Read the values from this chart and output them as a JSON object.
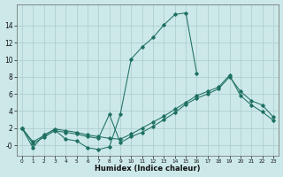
{
  "xlabel": "Humidex (Indice chaleur)",
  "background_color": "#cce8e8",
  "grid_color": "#aacccc",
  "line_color": "#1e7060",
  "line1_x": [
    0,
    1,
    2,
    3,
    4,
    5,
    6,
    7,
    8,
    9,
    10,
    11,
    12,
    13,
    14,
    15,
    16
  ],
  "line1_y": [
    2.0,
    -0.3,
    1.2,
    1.8,
    0.7,
    0.5,
    -0.3,
    -0.5,
    -0.2,
    3.6,
    10.1,
    11.5,
    12.6,
    14.1,
    15.3,
    15.5,
    8.4
  ],
  "line2_x": [
    0,
    1,
    2,
    3,
    4,
    5,
    6,
    7,
    8,
    9,
    10,
    11,
    12,
    13,
    14,
    15,
    16,
    17,
    18,
    19,
    20,
    21,
    22,
    23
  ],
  "line2_y": [
    2.0,
    0.2,
    0.9,
    1.7,
    1.5,
    1.3,
    1.0,
    0.8,
    3.6,
    0.3,
    1.0,
    1.5,
    2.2,
    3.0,
    3.8,
    4.8,
    5.5,
    6.0,
    6.6,
    8.0,
    6.3,
    5.2,
    4.7,
    3.3
  ],
  "line3_x": [
    0,
    1,
    2,
    3,
    4,
    5,
    6,
    7,
    8,
    9,
    10,
    11,
    12,
    13,
    14,
    15,
    16,
    17,
    18,
    19,
    20,
    21,
    22,
    23
  ],
  "line3_y": [
    2.0,
    0.4,
    1.1,
    1.9,
    1.7,
    1.5,
    1.2,
    1.0,
    0.8,
    0.7,
    1.3,
    2.0,
    2.7,
    3.4,
    4.2,
    5.0,
    5.8,
    6.3,
    6.8,
    8.2,
    5.8,
    4.7,
    3.9,
    2.9
  ],
  "ylim": [
    -1.2,
    16.5
  ],
  "xlim": [
    -0.5,
    23.5
  ],
  "yticks": [
    0,
    2,
    4,
    6,
    8,
    10,
    12,
    14
  ],
  "ytick_labels": [
    "-0",
    "2",
    "4",
    "6",
    "8",
    "10",
    "12",
    "14"
  ],
  "xticks": [
    0,
    1,
    2,
    3,
    4,
    5,
    6,
    7,
    8,
    9,
    10,
    11,
    12,
    13,
    14,
    15,
    16,
    17,
    18,
    19,
    20,
    21,
    22,
    23
  ]
}
